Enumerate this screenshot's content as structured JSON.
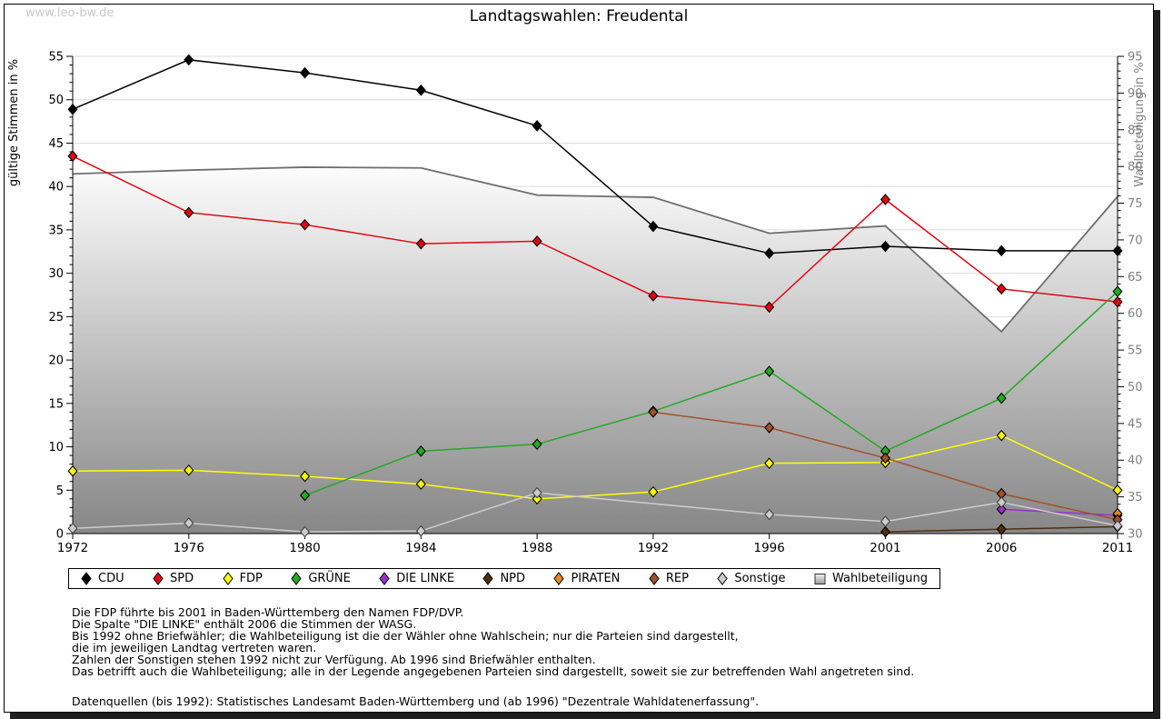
{
  "watermark": "www.leo-bw.de",
  "title": "Landtagswahlen: Freudental",
  "axes": {
    "left_label": "gültige Stimmen in %",
    "right_label": "Wahlbeteiligung in %",
    "left_range": [
      0,
      55
    ],
    "right_range": [
      30,
      95
    ],
    "left_ticks": [
      0,
      5,
      10,
      15,
      20,
      25,
      30,
      35,
      40,
      45,
      50,
      55
    ],
    "right_ticks": [
      30,
      35,
      40,
      45,
      50,
      55,
      60,
      65,
      70,
      75,
      80,
      85,
      90,
      95
    ]
  },
  "colors": {
    "axis": "#000000",
    "grid": "#dcdcdc",
    "right_axis_text": "#808080",
    "turnout_line": "#6e6e6e",
    "area_top": "#fcfcfc",
    "area_bottom": "#878787",
    "marker_outline": "#000000"
  },
  "chart_data": {
    "type": "line",
    "x": [
      1972,
      1976,
      1980,
      1984,
      1988,
      1992,
      1996,
      2001,
      2006,
      2011
    ],
    "series": [
      {
        "name": "CDU",
        "color": "#000000",
        "axis": "left",
        "values": [
          48.9,
          54.6,
          53.1,
          51.1,
          47.0,
          35.4,
          32.3,
          33.1,
          32.6,
          32.6
        ]
      },
      {
        "name": "SPD",
        "color": "#e00613",
        "axis": "left",
        "values": [
          43.5,
          37.0,
          35.6,
          33.4,
          33.7,
          27.4,
          26.1,
          38.5,
          28.2,
          26.7
        ]
      },
      {
        "name": "FDP",
        "color": "#ffff00",
        "axis": "left",
        "values": [
          7.2,
          7.3,
          6.6,
          5.7,
          4.0,
          4.8,
          8.1,
          8.2,
          11.3,
          5.0
        ]
      },
      {
        "name": "GRÜNE",
        "color": "#22aa22",
        "axis": "left",
        "values": [
          null,
          null,
          4.4,
          9.5,
          10.3,
          14.1,
          18.7,
          9.5,
          15.6,
          27.9
        ]
      },
      {
        "name": "DIE LINKE",
        "color": "#9932cc",
        "axis": "left",
        "values": [
          null,
          null,
          null,
          null,
          null,
          null,
          null,
          null,
          2.8,
          2.1
        ]
      },
      {
        "name": "NPD",
        "color": "#532d0d",
        "axis": "left",
        "values": [
          null,
          null,
          null,
          null,
          null,
          null,
          null,
          0.2,
          0.5,
          0.8
        ]
      },
      {
        "name": "PIRATEN",
        "color": "#e8881e",
        "axis": "left",
        "values": [
          null,
          null,
          null,
          null,
          null,
          null,
          null,
          null,
          null,
          2.3
        ]
      },
      {
        "name": "REP",
        "color": "#a0522d",
        "axis": "left",
        "values": [
          null,
          null,
          null,
          null,
          null,
          14.0,
          12.2,
          8.7,
          4.6,
          1.6
        ]
      },
      {
        "name": "Sonstige",
        "color": "#cccccc",
        "axis": "left",
        "values": [
          0.6,
          1.2,
          0.2,
          0.3,
          4.7,
          null,
          2.2,
          1.4,
          3.6,
          0.9
        ]
      },
      {
        "name": "Wahlbeteiligung",
        "color": "#6e6e6e",
        "axis": "right",
        "type": "area",
        "values": [
          79.0,
          79.5,
          79.9,
          79.8,
          76.1,
          75.8,
          70.9,
          71.9,
          57.5,
          75.9
        ]
      }
    ],
    "title": "Landtagswahlen: Freudental",
    "xlabel": "",
    "ylabel_left": "gültige Stimmen in %",
    "ylabel_right": "Wahlbeteiligung in %",
    "legend_position": "bottom",
    "grid": true
  },
  "notes": [
    "Die FDP führte bis 2001 in Baden-Württemberg den Namen FDP/DVP.",
    "Die Spalte \"DIE LINKE\" enthält 2006 die Stimmen der WASG.",
    "Bis 1992 ohne Briefwähler; die Wahlbeteiligung ist die der Wähler ohne Wahlschein; nur die Parteien sind dargestellt,",
    "die im jeweiligen Landtag vertreten waren.",
    "Zahlen der Sonstigen stehen 1992 nicht zur Verfügung. Ab 1996 sind Briefwähler enthalten.",
    "Das betrifft auch die Wahlbeteiligung; alle in der Legende angegebenen Parteien sind dargestellt, soweit sie zur betreffenden Wahl angetreten sind."
  ],
  "source": "Datenquellen (bis 1992): Statistisches Landesamt Baden-Württemberg und (ab 1996) \"Dezentrale Wahldatenerfassung\"."
}
